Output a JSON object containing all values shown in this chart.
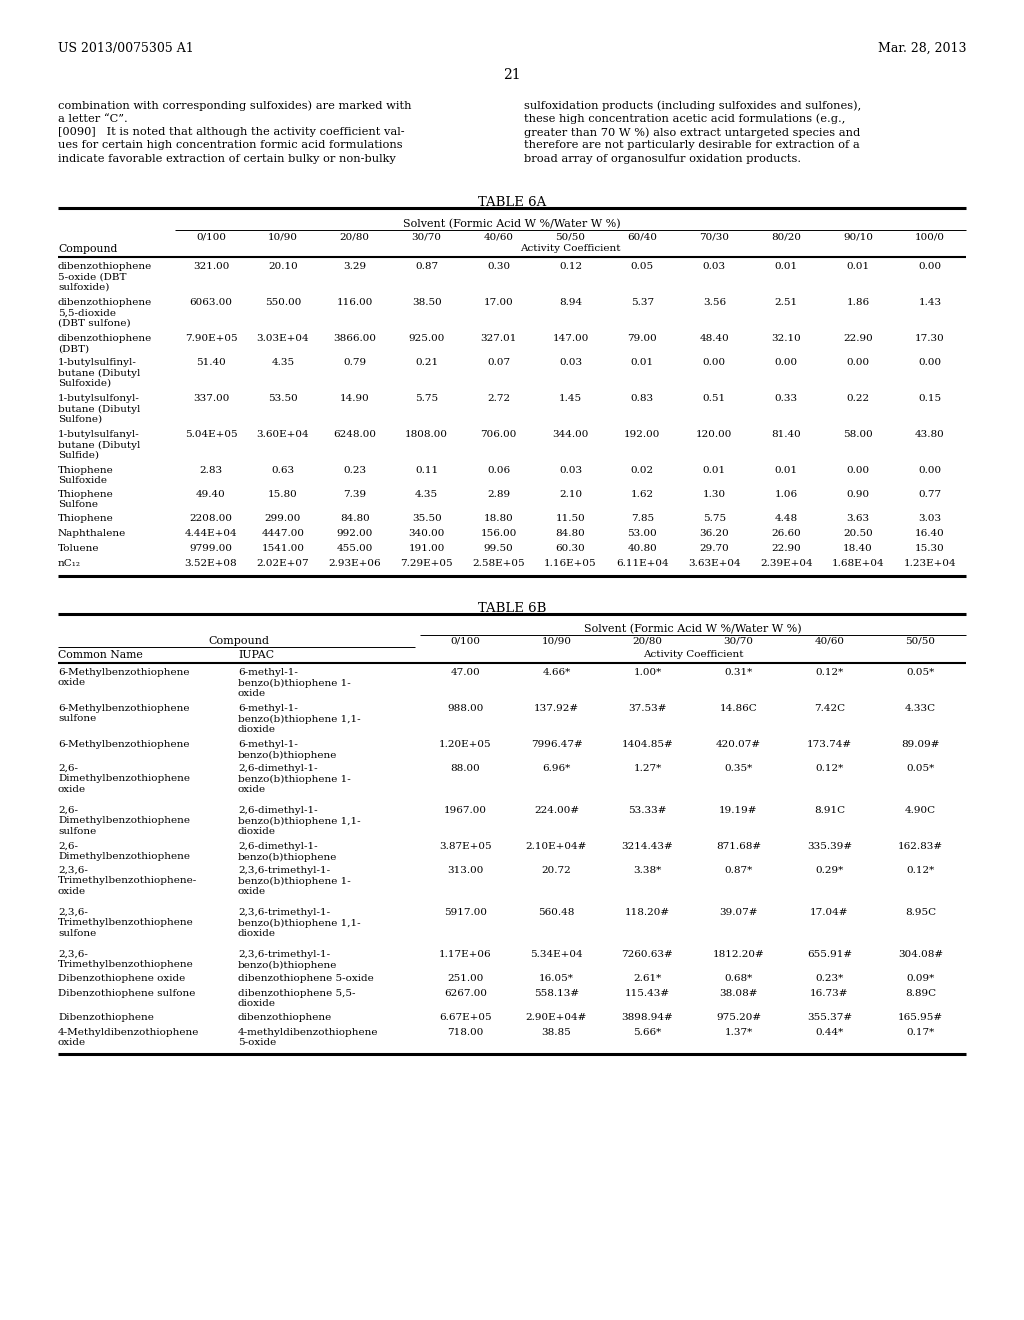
{
  "header_left": "US 2013/0075305 A1",
  "header_right": "Mar. 28, 2013",
  "page_number": "21",
  "para_left_lines": [
    "combination with corresponding sulfoxides) are marked with",
    "a letter “C”.",
    "[0090]   It is noted that although the activity coefficient val-",
    "ues for certain high concentration formic acid formulations",
    "indicate favorable extraction of certain bulky or non-bulky"
  ],
  "para_right_lines": [
    "sulfoxidation products (including sulfoxides and sulfones),",
    "these high concentration acetic acid formulations (e.g.,",
    "greater than 70 W %) also extract untargeted species and",
    "therefore are not particularly desirable for extraction of a",
    "broad array of organosulfur oxidation products."
  ],
  "table6a_title": "TABLE 6A",
  "table6a_solvent_header": "Solvent (Formic Acid W %/Water W %)",
  "table6a_headers": [
    "0/100",
    "10/90",
    "20/80",
    "30/70",
    "40/60",
    "50/50",
    "60/40",
    "70/30",
    "80/20",
    "90/10",
    "100/0"
  ],
  "table6a_activity_label": "Activity Coefficient",
  "table6a_compound_label": "Compound",
  "table6a_rows": [
    [
      "dibenzothiophene\n5-oxide (DBT\nsulfoxide)",
      "321.00",
      "20.10",
      "3.29",
      "0.87",
      "0.30",
      "0.12",
      "0.05",
      "0.03",
      "0.01",
      "0.01",
      "0.00"
    ],
    [
      "dibenzothiophene\n5,5-dioxide\n(DBT sulfone)",
      "6063.00",
      "550.00",
      "116.00",
      "38.50",
      "17.00",
      "8.94",
      "5.37",
      "3.56",
      "2.51",
      "1.86",
      "1.43"
    ],
    [
      "dibenzothiophene\n(DBT)",
      "7.90E+05",
      "3.03E+04",
      "3866.00",
      "925.00",
      "327.01",
      "147.00",
      "79.00",
      "48.40",
      "32.10",
      "22.90",
      "17.30"
    ],
    [
      "1-butylsulfinyl-\nbutane (Dibutyl\nSulfoxide)",
      "51.40",
      "4.35",
      "0.79",
      "0.21",
      "0.07",
      "0.03",
      "0.01",
      "0.00",
      "0.00",
      "0.00",
      "0.00"
    ],
    [
      "1-butylsulfonyl-\nbutane (Dibutyl\nSulfone)",
      "337.00",
      "53.50",
      "14.90",
      "5.75",
      "2.72",
      "1.45",
      "0.83",
      "0.51",
      "0.33",
      "0.22",
      "0.15"
    ],
    [
      "1-butylsulfanyl-\nbutane (Dibutyl\nSulfide)",
      "5.04E+05",
      "3.60E+04",
      "6248.00",
      "1808.00",
      "706.00",
      "344.00",
      "192.00",
      "120.00",
      "81.40",
      "58.00",
      "43.80"
    ],
    [
      "Thiophene\nSulfoxide",
      "2.83",
      "0.63",
      "0.23",
      "0.11",
      "0.06",
      "0.03",
      "0.02",
      "0.01",
      "0.01",
      "0.00",
      "0.00"
    ],
    [
      "Thiophene\nSulfone",
      "49.40",
      "15.80",
      "7.39",
      "4.35",
      "2.89",
      "2.10",
      "1.62",
      "1.30",
      "1.06",
      "0.90",
      "0.77"
    ],
    [
      "Thiophene",
      "2208.00",
      "299.00",
      "84.80",
      "35.50",
      "18.80",
      "11.50",
      "7.85",
      "5.75",
      "4.48",
      "3.63",
      "3.03"
    ],
    [
      "Naphthalene",
      "4.44E+04",
      "4447.00",
      "992.00",
      "340.00",
      "156.00",
      "84.80",
      "53.00",
      "36.20",
      "26.60",
      "20.50",
      "16.40"
    ],
    [
      "Toluene",
      "9799.00",
      "1541.00",
      "455.00",
      "191.00",
      "99.50",
      "60.30",
      "40.80",
      "29.70",
      "22.90",
      "18.40",
      "15.30"
    ],
    [
      "nC₁₂",
      "3.52E+08",
      "2.02E+07",
      "2.93E+06",
      "7.29E+05",
      "2.58E+05",
      "1.16E+05",
      "6.11E+04",
      "3.63E+04",
      "2.39E+04",
      "1.68E+04",
      "1.23E+04"
    ]
  ],
  "table6a_row_heights": [
    36,
    36,
    24,
    36,
    36,
    36,
    24,
    24,
    15,
    15,
    15,
    15
  ],
  "table6b_title": "TABLE 6B",
  "table6b_solvent_header": "Solvent (Formic Acid W %/Water W %)",
  "table6b_compound_label": "Compound",
  "table6b_col_headers": [
    "0/100",
    "10/90",
    "20/80",
    "30/70",
    "40/60",
    "50/50"
  ],
  "table6b_activity_label": "Activity Coefficient",
  "table6b_rows": [
    [
      "6-Methylbenzothiophene\noxide",
      "6-methyl-1-\nbenzo(b)thiophene 1-\noxide",
      "47.00",
      "4.66*",
      "1.00*",
      "0.31*",
      "0.12*",
      "0.05*"
    ],
    [
      "6-Methylbenzothiophene\nsulfone",
      "6-methyl-1-\nbenzo(b)thiophene 1,1-\ndioxide",
      "988.00",
      "137.92#",
      "37.53#",
      "14.86C",
      "7.42C",
      "4.33C"
    ],
    [
      "6-Methylbenzothiophene",
      "6-methyl-1-\nbenzo(b)thiophene",
      "1.20E+05",
      "7996.47#",
      "1404.85#",
      "420.07#",
      "173.74#",
      "89.09#"
    ],
    [
      "2,6-\nDimethylbenzothiophene\noxide",
      "2,6-dimethyl-1-\nbenzo(b)thiophene 1-\noxide",
      "88.00",
      "6.96*",
      "1.27*",
      "0.35*",
      "0.12*",
      "0.05*"
    ],
    [
      "2,6-\nDimethylbenzothiophene\nsulfone",
      "2,6-dimethyl-1-\nbenzo(b)thiophene 1,1-\ndioxide",
      "1967.00",
      "224.00#",
      "53.33#",
      "19.19#",
      "8.91C",
      "4.90C"
    ],
    [
      "2,6-\nDimethylbenzothiophene",
      "2,6-dimethyl-1-\nbenzo(b)thiophene",
      "3.87E+05",
      "2.10E+04#",
      "3214.43#",
      "871.68#",
      "335.39#",
      "162.83#"
    ],
    [
      "2,3,6-\nTrimethylbenzothiophene-\noxide",
      "2,3,6-trimethyl-1-\nbenzo(b)thiophene 1-\noxide",
      "313.00",
      "20.72",
      "3.38*",
      "0.87*",
      "0.29*",
      "0.12*"
    ],
    [
      "2,3,6-\nTrimethylbenzothiophene\nsulfone",
      "2,3,6-trimethyl-1-\nbenzo(b)thiophene 1,1-\ndioxide",
      "5917.00",
      "560.48",
      "118.20#",
      "39.07#",
      "17.04#",
      "8.95C"
    ],
    [
      "2,3,6-\nTrimethylbenzothiophene",
      "2,3,6-trimethyl-1-\nbenzo(b)thiophene",
      "1.17E+06",
      "5.34E+04",
      "7260.63#",
      "1812.20#",
      "655.91#",
      "304.08#"
    ],
    [
      "Dibenzothiophene oxide",
      "dibenzothiophene 5-oxide",
      "251.00",
      "16.05*",
      "2.61*",
      "0.68*",
      "0.23*",
      "0.09*"
    ],
    [
      "Dibenzothiophene sulfone",
      "dibenzothiophene 5,5-\ndioxide",
      "6267.00",
      "558.13#",
      "115.43#",
      "38.08#",
      "16.73#",
      "8.89C"
    ],
    [
      "Dibenzothiophene",
      "dibenzothiophene",
      "6.67E+05",
      "2.90E+04#",
      "3898.94#",
      "975.20#",
      "355.37#",
      "165.95#"
    ],
    [
      "4-Methyldibenzothiophene\noxide",
      "4-methyldibenzothiophene\n5-oxide",
      "718.00",
      "38.85",
      "5.66*",
      "1.37*",
      "0.44*",
      "0.17*"
    ]
  ],
  "table6b_row_heights": [
    36,
    36,
    24,
    42,
    36,
    24,
    42,
    42,
    24,
    15,
    24,
    15,
    24
  ]
}
